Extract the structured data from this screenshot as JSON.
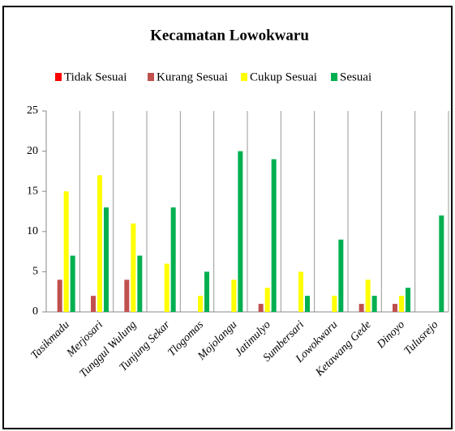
{
  "chart_data": {
    "type": "bar",
    "title": "Kecamatan Lowokwaru",
    "categories": [
      "Tasikmadu",
      "Merjosari",
      "Tunggul Wulung",
      "Tunjung Sekar",
      "Tlogomas",
      "Mojolangu",
      "Jatimulyo",
      "Sumbersari",
      "Lowokwaru",
      "Ketawang Gede",
      "Dinoyo",
      "Tulusrejo"
    ],
    "series": [
      {
        "name": "Tidak Sesuai",
        "color": "#ff0000",
        "values": [
          0,
          0,
          0,
          0,
          0,
          0,
          0,
          0,
          0,
          0,
          0,
          0
        ]
      },
      {
        "name": "Kurang Sesuai",
        "color": "#c0504d",
        "values": [
          4,
          2,
          4,
          0,
          0,
          0,
          1,
          0,
          0,
          1,
          1,
          0
        ]
      },
      {
        "name": "Cukup Sesuai",
        "color": "#ffff00",
        "values": [
          15,
          17,
          11,
          6,
          2,
          4,
          3,
          5,
          2,
          4,
          2,
          0
        ]
      },
      {
        "name": "Sesuai",
        "color": "#00b050",
        "values": [
          7,
          13,
          7,
          13,
          5,
          20,
          19,
          2,
          9,
          2,
          3,
          12
        ]
      }
    ],
    "ylim": [
      0,
      25
    ],
    "yticks": [
      0,
      5,
      10,
      15,
      20,
      25
    ],
    "legend": "top"
  }
}
